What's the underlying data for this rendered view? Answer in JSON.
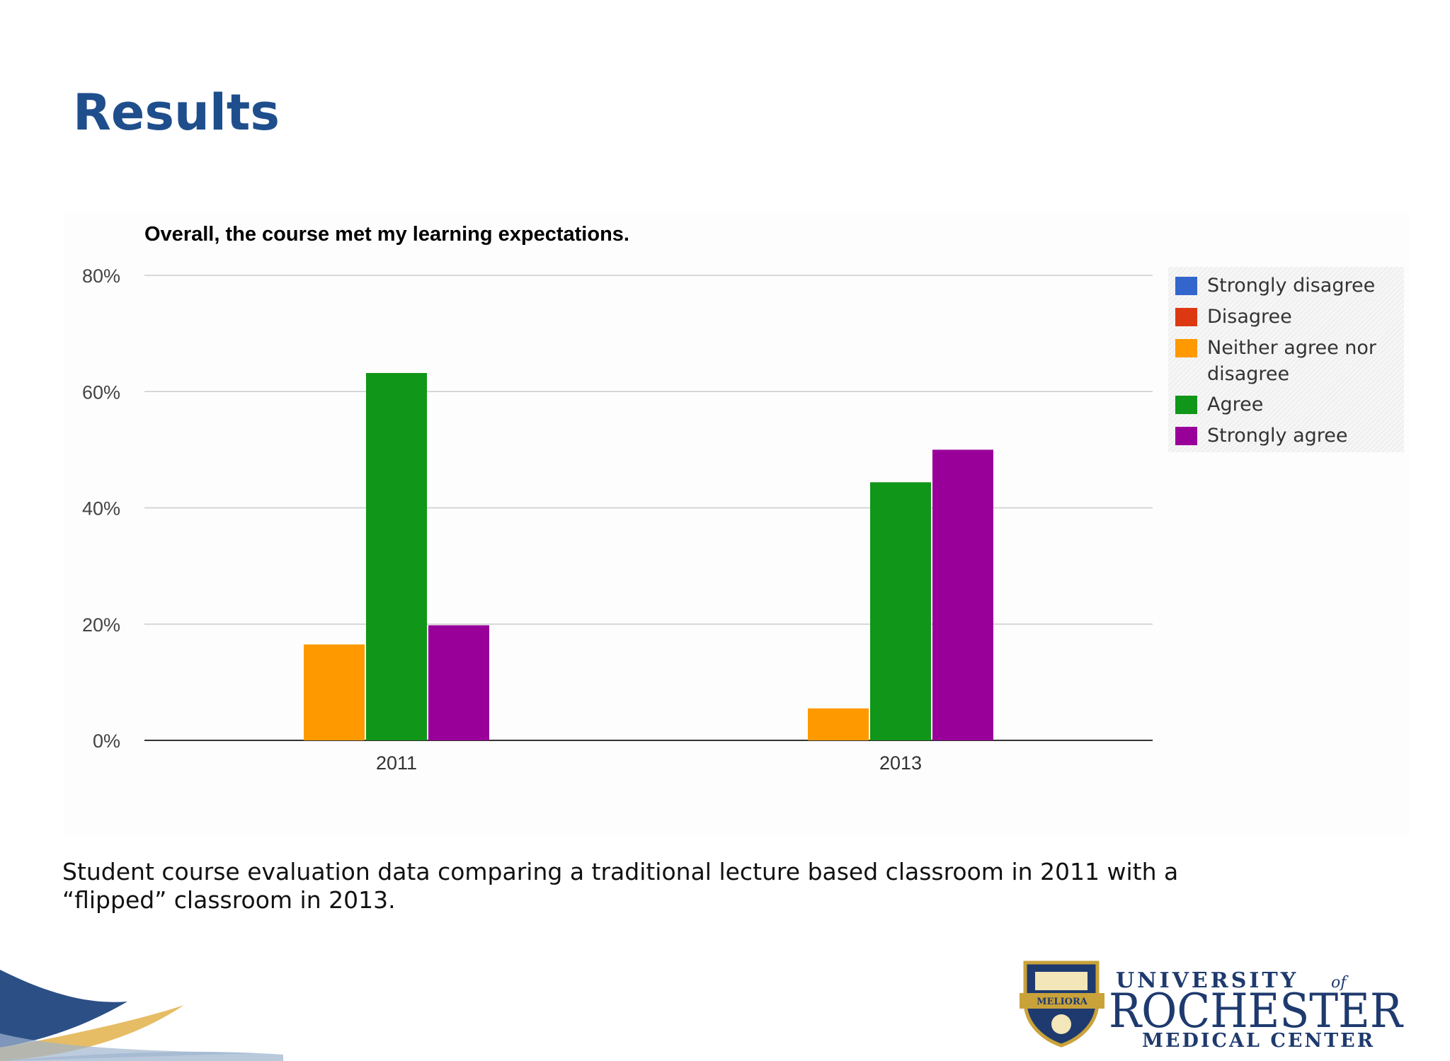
{
  "slide": {
    "title": "Results",
    "caption": "Student course evaluation data comparing a traditional lecture based classroom in 2011 with a “flipped” classroom in 2013."
  },
  "logo": {
    "line1": "UNIVERSITY",
    "line1_of": "of",
    "line2": "ROCHESTER",
    "line3": "MEDICAL CENTER",
    "seal_text": "MELIORA"
  },
  "chart_data": {
    "type": "bar",
    "title": "Overall, the course met my learning expectations.",
    "xlabel": "",
    "ylabel": "",
    "categories": [
      "2011",
      "2013"
    ],
    "ylim": [
      0,
      80
    ],
    "yticks": [
      "0%",
      "20%",
      "40%",
      "60%",
      "80%"
    ],
    "grid": true,
    "legend_position": "right",
    "series": [
      {
        "name": "Strongly disagree",
        "color": "#3366cc",
        "values": [
          0,
          0
        ]
      },
      {
        "name": "Disagree",
        "color": "#dc3912",
        "values": [
          0,
          0
        ]
      },
      {
        "name": "Neither agree nor disagree",
        "color": "#ff9900",
        "values": [
          16.5,
          5.5
        ]
      },
      {
        "name": "Agree",
        "color": "#109618",
        "values": [
          63.2,
          44.4
        ]
      },
      {
        "name": "Strongly agree",
        "color": "#990099",
        "values": [
          19.8,
          50
        ]
      }
    ]
  }
}
